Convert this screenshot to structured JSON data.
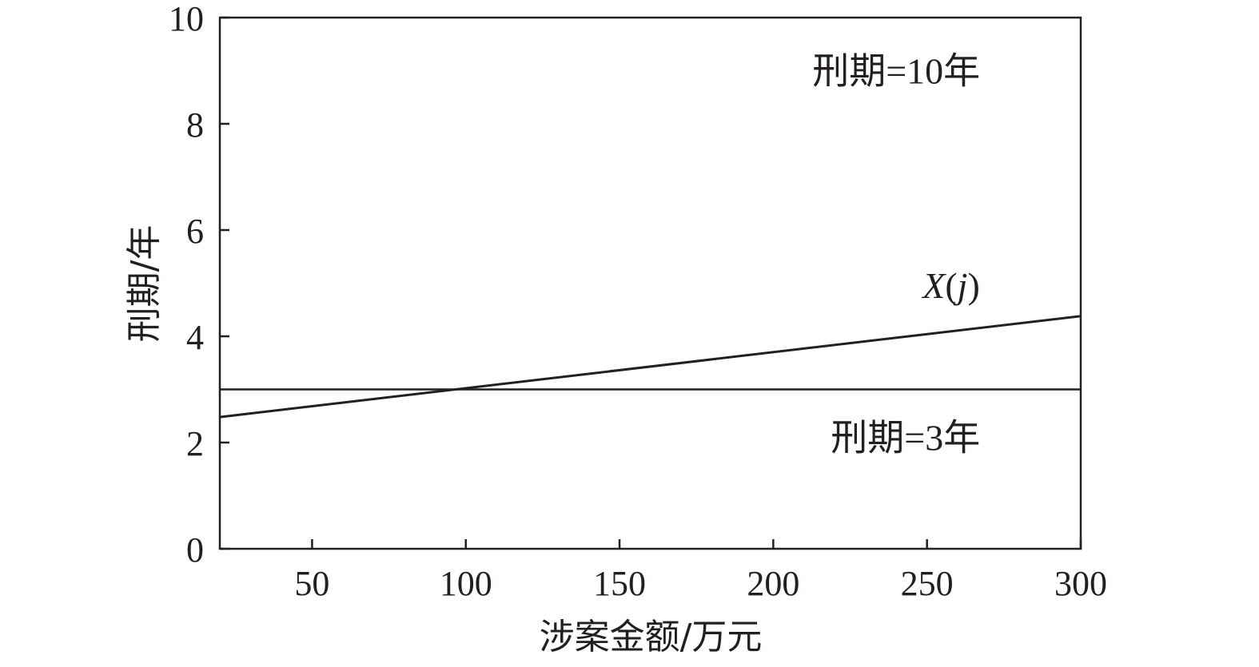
{
  "chart_data": {
    "type": "line",
    "title": "",
    "xlabel": "涉案金额/万元",
    "ylabel": "刑期/年",
    "xlim": [
      20,
      300
    ],
    "ylim": [
      0,
      10
    ],
    "xticks": [
      50,
      100,
      150,
      200,
      250,
      300
    ],
    "yticks": [
      0,
      2,
      4,
      6,
      8,
      10
    ],
    "grid": false,
    "series": [
      {
        "label": "X(j)",
        "x": [
          20,
          300
        ],
        "y": [
          2.48,
          4.38
        ],
        "color": "#231f20"
      }
    ],
    "reference_lines": [
      {
        "y": 3,
        "color": "#231f20"
      }
    ],
    "annotations": [
      {
        "text": "刑期=10年",
        "x": 240,
        "y": 9.0
      },
      {
        "text": "刑期=3年",
        "x": 243,
        "y": 2.1
      }
    ]
  }
}
